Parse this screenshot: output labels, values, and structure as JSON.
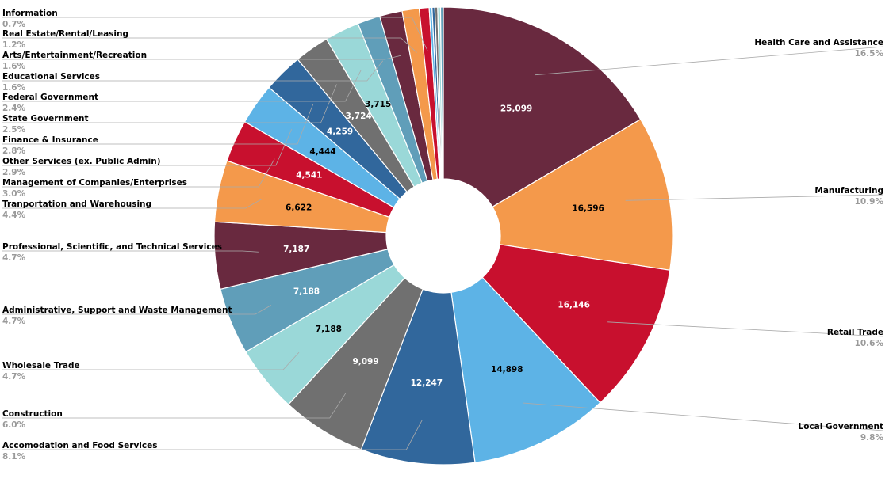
{
  "chart_data": {
    "type": "pie",
    "style": "donut",
    "title": "",
    "categories": [
      {
        "name": "Health Care and Assistance",
        "pct": "16.5%",
        "value": 25099,
        "value_label": "25,099",
        "color": "#69293F"
      },
      {
        "name": "Manufacturing",
        "pct": "10.9%",
        "value": 16596,
        "value_label": "16,596",
        "color": "#F4994B"
      },
      {
        "name": "Retail Trade",
        "pct": "10.6%",
        "value": 16146,
        "value_label": "16,146",
        "color": "#C8102E"
      },
      {
        "name": "Local Government",
        "pct": "9.8%",
        "value": 14898,
        "value_label": "14,898",
        "color": "#5DB3E6"
      },
      {
        "name": "Accomodation and Food Services",
        "pct": "8.1%",
        "value": 12247,
        "value_label": "12,247",
        "color": "#31679C"
      },
      {
        "name": "Construction",
        "pct": "6.0%",
        "value": 9099,
        "value_label": "9,099",
        "color": "#707070"
      },
      {
        "name": "Wholesale Trade",
        "pct": "4.7%",
        "value": 7188,
        "value_label": "7,188",
        "color": "#9AD8D8"
      },
      {
        "name": "Administrative, Support and Waste Management",
        "pct": "4.7%",
        "value": 7188,
        "value_label": "7,188",
        "color": "#609EB9"
      },
      {
        "name": "Professional, Scientific, and Technical Services",
        "pct": "4.7%",
        "value": 7187,
        "value_label": "7,187",
        "color": "#69293F"
      },
      {
        "name": "Tranportation and Warehousing",
        "pct": "4.4%",
        "value": 6622,
        "value_label": "6,622",
        "color": "#F4994B"
      },
      {
        "name": "Management of Companies/Enterprises",
        "pct": "3.0%",
        "value": 4541,
        "value_label": "4,541",
        "color": "#C8102E"
      },
      {
        "name": "Other Services (ex. Public Admin)",
        "pct": "2.9%",
        "value": 4444,
        "value_label": "4,444",
        "color": "#5DB3E6"
      },
      {
        "name": "Finance & Insurance",
        "pct": "2.8%",
        "value": 4259,
        "value_label": "4,259",
        "color": "#31679C"
      },
      {
        "name": "State Government",
        "pct": "2.5%",
        "value": 3724,
        "value_label": "3,724",
        "color": "#707070"
      },
      {
        "name": "Federal Government",
        "pct": "2.4%",
        "value": 3715,
        "value_label": "3,715",
        "color": "#9AD8D8"
      },
      {
        "name": "Educational Services",
        "pct": "1.6%",
        "value": 2430,
        "value_label": "",
        "color": "#609EB9"
      },
      {
        "name": "Arts/Entertainment/Recreation",
        "pct": "1.6%",
        "value": 2430,
        "value_label": "",
        "color": "#69293F"
      },
      {
        "name": "Real Estate/Rental/Leasing",
        "pct": "1.2%",
        "value": 1825,
        "value_label": "",
        "color": "#F4994B"
      },
      {
        "name": "Information",
        "pct": "0.7%",
        "value": 1065,
        "value_label": "",
        "color": "#C8102E"
      },
      {
        "name": "",
        "pct": "",
        "value": 300,
        "value_label": "",
        "color": "#5DB3E6"
      },
      {
        "name": "",
        "pct": "",
        "value": 300,
        "value_label": "",
        "color": "#31679C"
      },
      {
        "name": "",
        "pct": "",
        "value": 300,
        "value_label": "",
        "color": "#707070"
      },
      {
        "name": "",
        "pct": "",
        "value": 300,
        "value_label": "",
        "color": "#9AD8D8"
      },
      {
        "name": "",
        "pct": "",
        "value": 300,
        "value_label": "",
        "color": "#609EB9"
      }
    ],
    "legend": "none",
    "labels": "outside with leader lines; values inside slices"
  }
}
